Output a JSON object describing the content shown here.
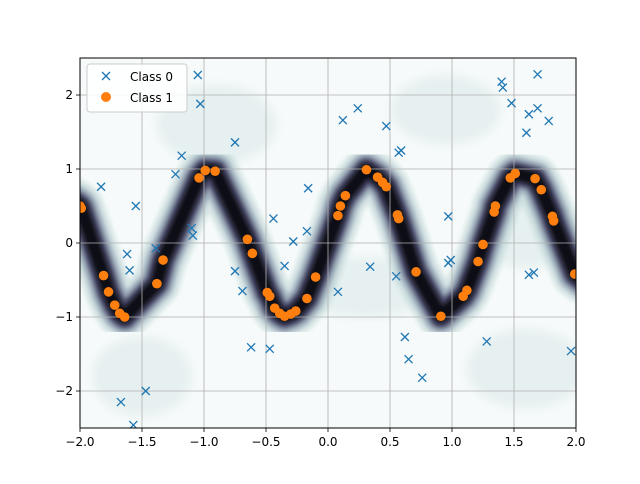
{
  "chart_data": {
    "type": "scatter",
    "title": "",
    "xlabel": "",
    "ylabel": "",
    "xlim": [
      -2.0,
      2.0
    ],
    "ylim": [
      -2.5,
      2.5
    ],
    "x_ticks": [
      "-2.0",
      "-1.5",
      "-1.0",
      "-0.5",
      "0.0",
      "0.5",
      "1.0",
      "1.5",
      "2.0"
    ],
    "y_ticks": [
      "-2",
      "-1",
      "0",
      "1",
      "2"
    ],
    "grid": true,
    "legend_position": "top-left",
    "background": "decision-density contour (dark band along the Class 1 curve)",
    "series": [
      {
        "name": "Class 0",
        "marker": "x",
        "color": "#1f77b4",
        "points": [
          [
            -1.83,
            0.76
          ],
          [
            -1.55,
            0.5
          ],
          [
            -1.62,
            -0.15
          ],
          [
            -1.6,
            -0.37
          ],
          [
            -1.39,
            -0.07
          ],
          [
            -1.67,
            -2.15
          ],
          [
            -1.57,
            -2.46
          ],
          [
            -1.47,
            -2.0
          ],
          [
            -1.23,
            0.93
          ],
          [
            -1.18,
            1.18
          ],
          [
            -1.1,
            0.2
          ],
          [
            -1.09,
            0.1
          ],
          [
            -1.05,
            2.27
          ],
          [
            -1.03,
            1.88
          ],
          [
            -0.75,
            1.36
          ],
          [
            -0.75,
            -0.38
          ],
          [
            -0.69,
            -0.65
          ],
          [
            -0.62,
            -1.41
          ],
          [
            -0.47,
            -1.43
          ],
          [
            -0.44,
            0.33
          ],
          [
            -0.35,
            -0.31
          ],
          [
            -0.28,
            0.02
          ],
          [
            -0.17,
            0.16
          ],
          [
            -0.16,
            0.74
          ],
          [
            0.08,
            -0.66
          ],
          [
            0.12,
            1.66
          ],
          [
            0.24,
            1.82
          ],
          [
            0.34,
            -0.32
          ],
          [
            0.47,
            1.58
          ],
          [
            0.55,
            -0.45
          ],
          [
            0.57,
            1.22
          ],
          [
            0.59,
            1.25
          ],
          [
            0.62,
            -1.27
          ],
          [
            0.65,
            -1.57
          ],
          [
            0.76,
            -1.82
          ],
          [
            0.97,
            0.36
          ],
          [
            0.97,
            -0.27
          ],
          [
            0.99,
            -0.23
          ],
          [
            1.28,
            -1.33
          ],
          [
            1.4,
            2.18
          ],
          [
            1.41,
            2.1
          ],
          [
            1.48,
            1.89
          ],
          [
            1.6,
            1.49
          ],
          [
            1.62,
            1.74
          ],
          [
            1.62,
            -0.43
          ],
          [
            1.66,
            -0.4
          ],
          [
            1.69,
            1.82
          ],
          [
            1.69,
            2.28
          ],
          [
            1.78,
            1.65
          ],
          [
            1.96,
            -1.46
          ]
        ]
      },
      {
        "name": "Class 1",
        "marker": "o",
        "color": "#ff7f0e",
        "points": [
          [
            -2.0,
            0.5
          ],
          [
            -1.99,
            0.47
          ],
          [
            -1.81,
            -0.44
          ],
          [
            -1.77,
            -0.66
          ],
          [
            -1.72,
            -0.84
          ],
          [
            -1.68,
            -0.95
          ],
          [
            -1.64,
            -1.0
          ],
          [
            -1.38,
            -0.55
          ],
          [
            -1.33,
            -0.23
          ],
          [
            -1.04,
            0.88
          ],
          [
            -0.99,
            0.98
          ],
          [
            -0.91,
            0.97
          ],
          [
            -0.65,
            0.05
          ],
          [
            -0.61,
            -0.14
          ],
          [
            -0.49,
            -0.67
          ],
          [
            -0.47,
            -0.72
          ],
          [
            -0.43,
            -0.88
          ],
          [
            -0.39,
            -0.95
          ],
          [
            -0.35,
            -0.99
          ],
          [
            -0.3,
            -0.96
          ],
          [
            -0.26,
            -0.92
          ],
          [
            -0.17,
            -0.75
          ],
          [
            -0.1,
            -0.46
          ],
          [
            0.08,
            0.37
          ],
          [
            0.1,
            0.5
          ],
          [
            0.14,
            0.64
          ],
          [
            0.31,
            0.99
          ],
          [
            0.4,
            0.89
          ],
          [
            0.44,
            0.82
          ],
          [
            0.47,
            0.76
          ],
          [
            0.56,
            0.38
          ],
          [
            0.57,
            0.33
          ],
          [
            0.71,
            -0.39
          ],
          [
            0.91,
            -0.99
          ],
          [
            1.09,
            -0.72
          ],
          [
            1.12,
            -0.64
          ],
          [
            1.21,
            -0.25
          ],
          [
            1.25,
            -0.02
          ],
          [
            1.34,
            0.42
          ],
          [
            1.35,
            0.5
          ],
          [
            1.47,
            0.88
          ],
          [
            1.51,
            0.94
          ],
          [
            1.67,
            0.87
          ],
          [
            1.72,
            0.72
          ],
          [
            1.81,
            0.36
          ],
          [
            1.82,
            0.3
          ],
          [
            1.99,
            -0.42
          ]
        ]
      }
    ]
  },
  "legend": {
    "entries": [
      "Class 0",
      "Class 1"
    ]
  }
}
